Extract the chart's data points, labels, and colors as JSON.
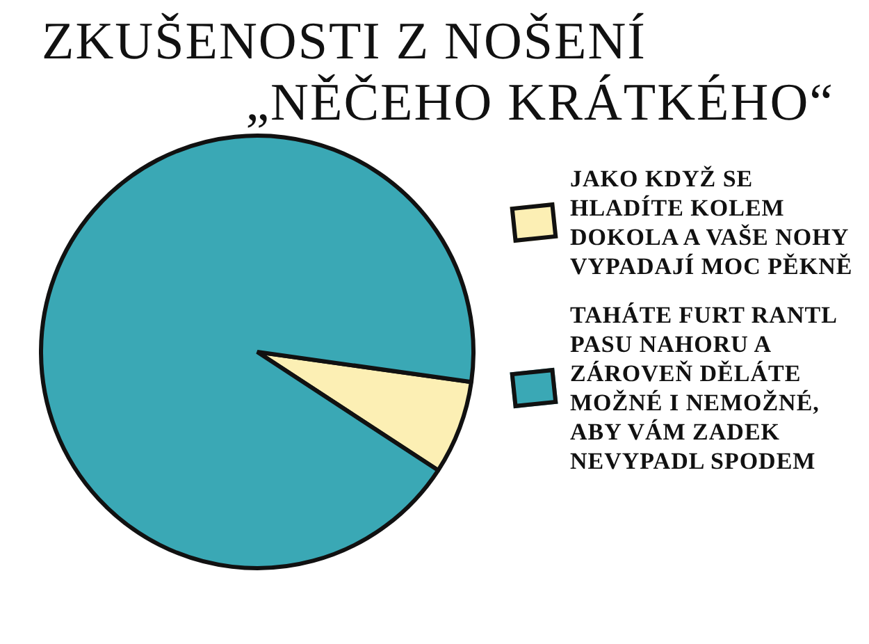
{
  "chart_data": {
    "type": "pie",
    "title": "ZKUŠENOSTI Z NOŠENÍ\n„NĚČEHO KRÁTKÉHO“",
    "categories": [
      "JAKO KDYŽ SE HLADÍTE KOLEM DOKOLA A VAŠE NOHY VYPADAJÍ MOC PĚKNĚ",
      "TAHÁTE FURT RANTL PASU NAHORU A ZÁROVEŇ DĚLÁTE MOŽNÉ I NEMOŽNÉ, ABY VÁM ZADEK NEVYPADL SPODEM"
    ],
    "values": [
      7,
      93
    ],
    "colors": [
      "#fcefb4",
      "#3aa8b5"
    ],
    "legend": "right"
  }
}
